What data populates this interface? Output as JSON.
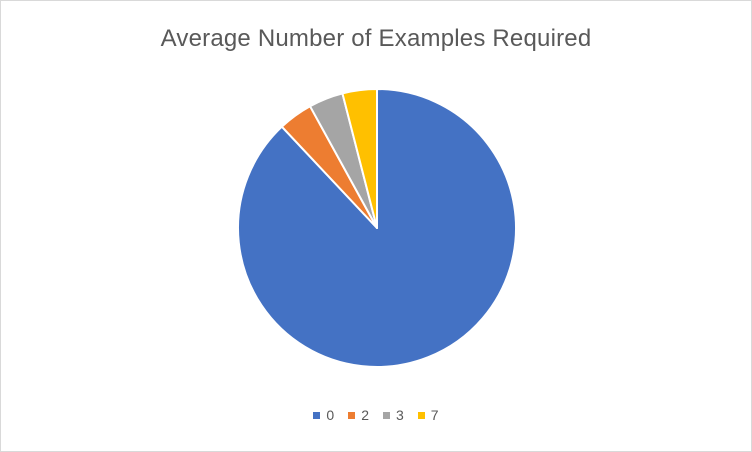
{
  "chart_data": {
    "type": "pie",
    "title": "Average Number of Examples Required",
    "categories": [
      "0",
      "2",
      "3",
      "7"
    ],
    "values": [
      88,
      4,
      4,
      4
    ],
    "colors": [
      "#4472c4",
      "#ed7d31",
      "#a5a5a5",
      "#ffc000"
    ],
    "legend_position": "bottom"
  }
}
